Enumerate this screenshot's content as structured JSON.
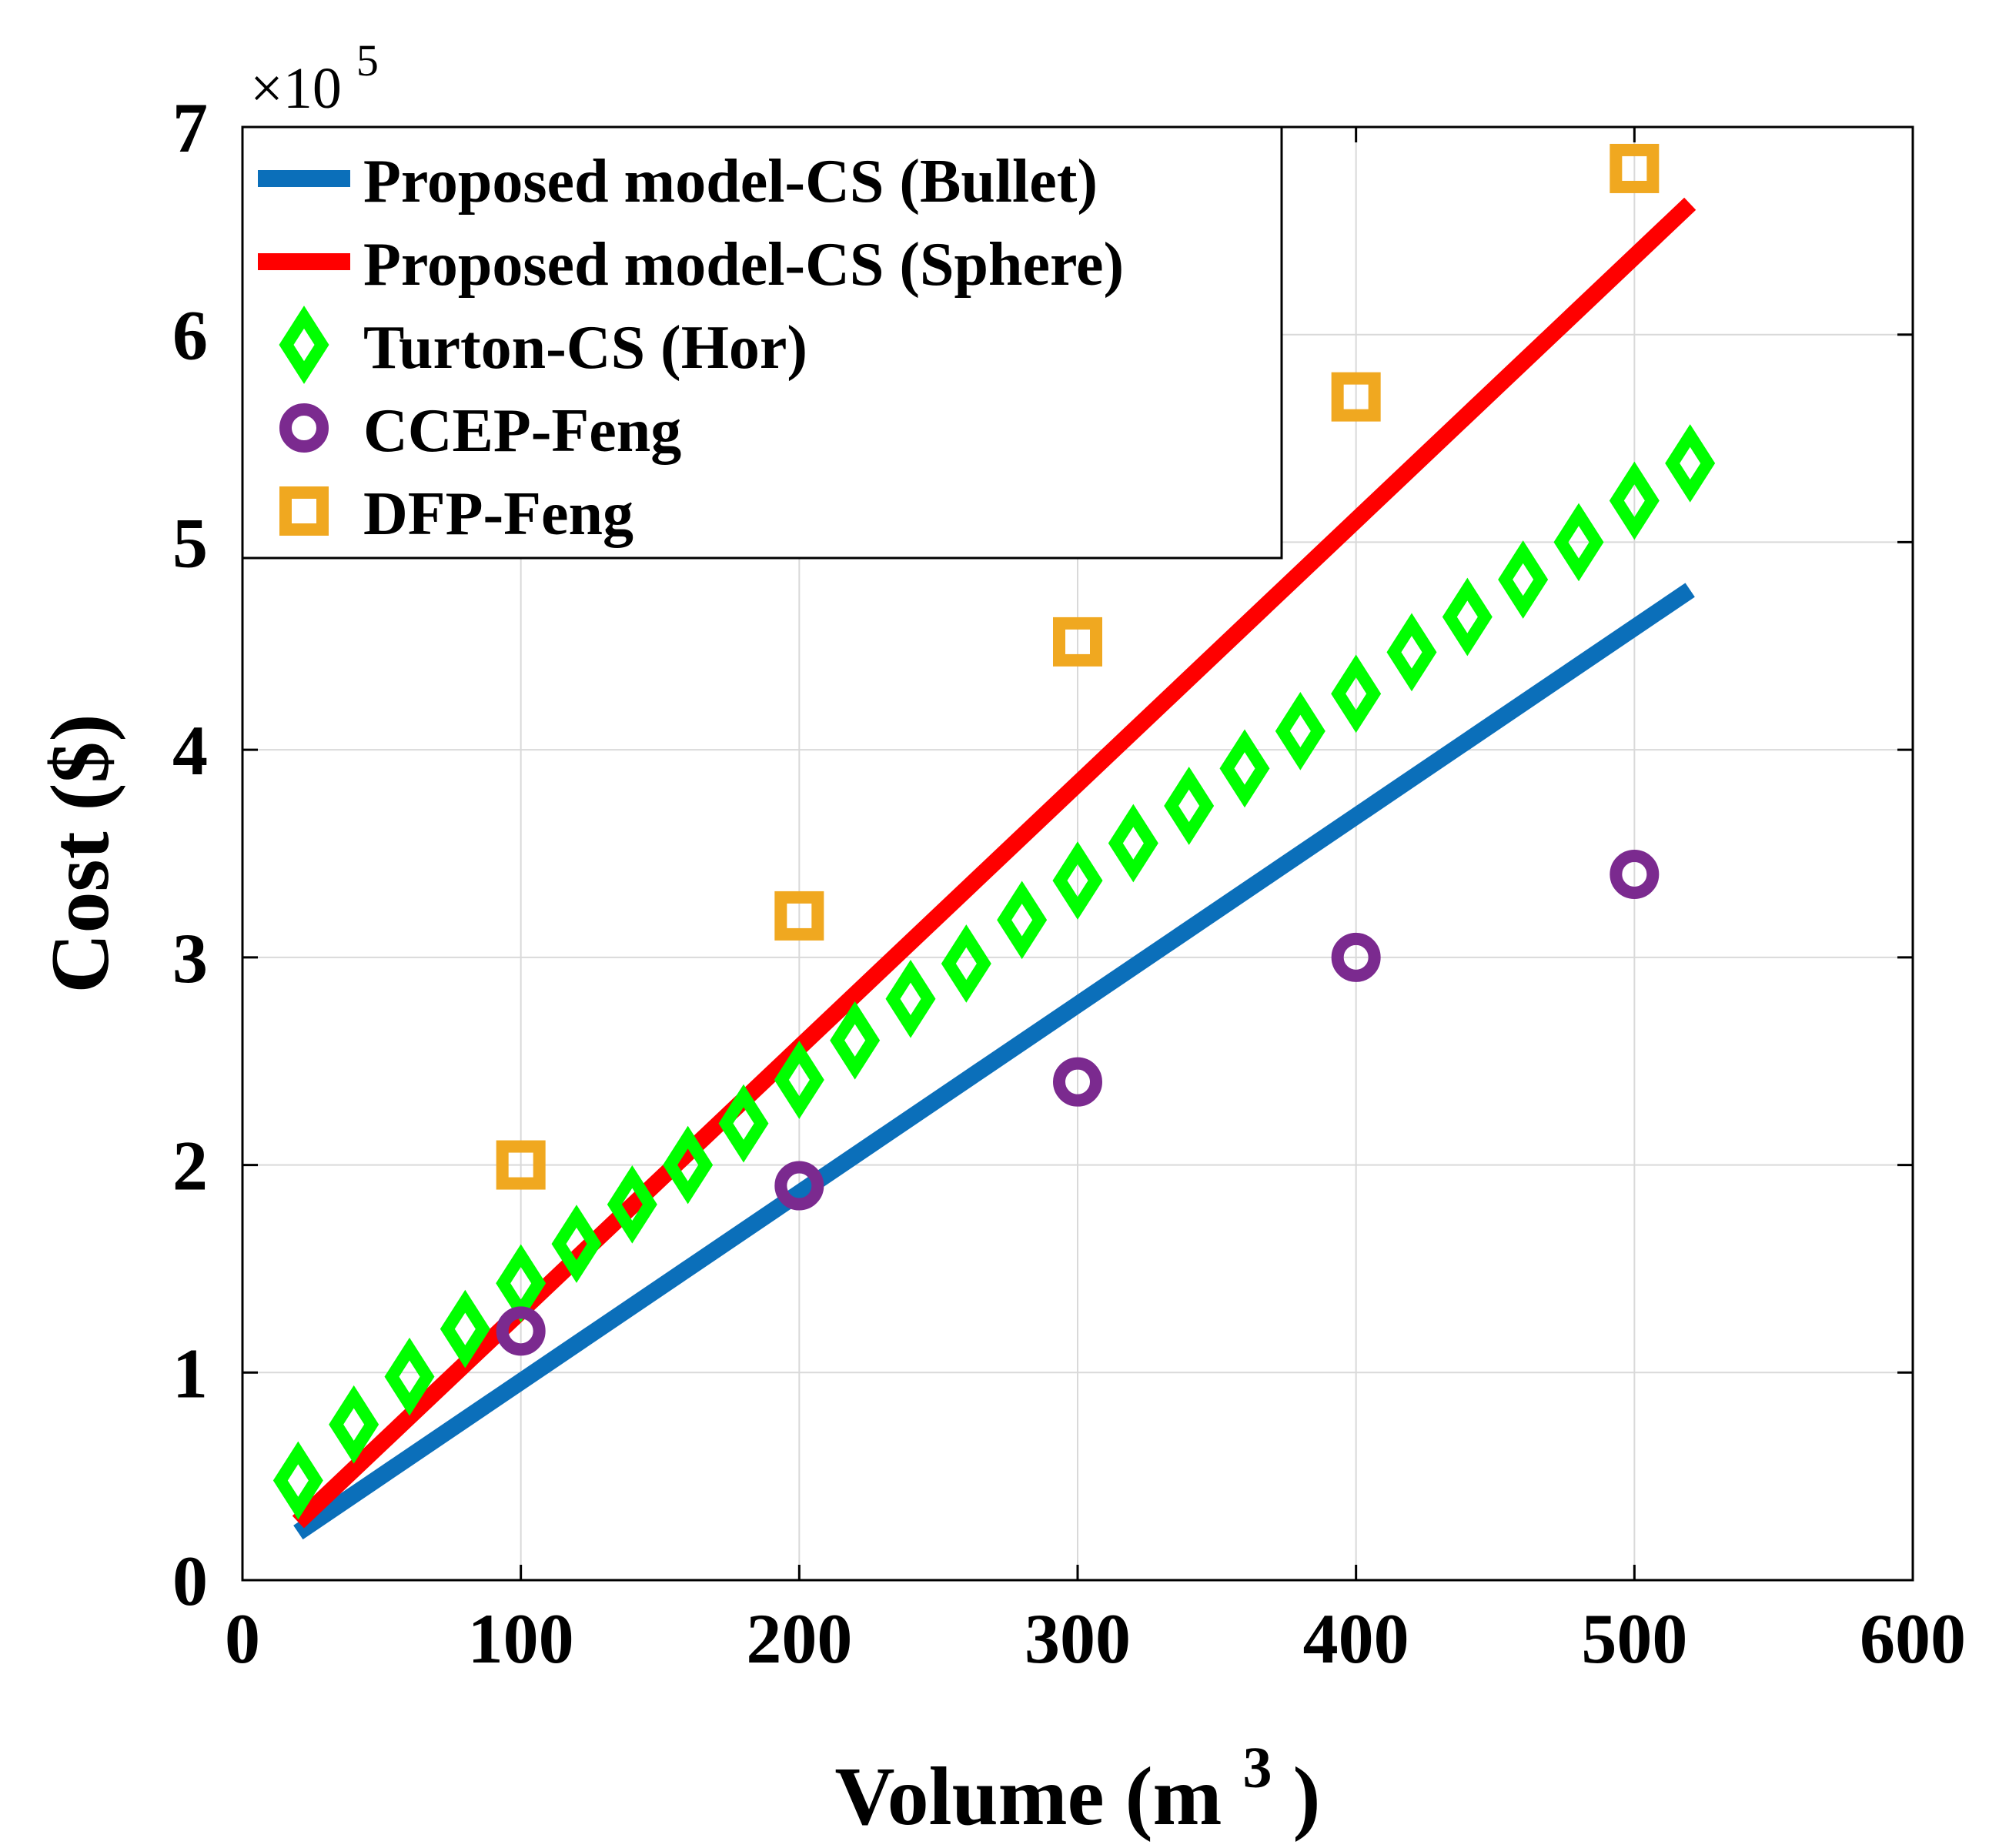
{
  "chart_data": {
    "type": "line",
    "title": "",
    "xlabel": "Volume (m",
    "xlabel_sup": "3",
    "xlabel_close": ")",
    "ylabel": "Cost ($)",
    "xlim": [
      0,
      600
    ],
    "ylim": [
      0,
      7
    ],
    "y_multiplier_base": "×10",
    "y_multiplier_exp": "5",
    "grid": true,
    "legend_position": "top-left",
    "x_ticks": [
      0,
      100,
      200,
      300,
      400,
      500,
      600
    ],
    "x_tick_labels": [
      "0",
      "100",
      "200",
      "300",
      "400",
      "500",
      "600"
    ],
    "y_ticks": [
      0,
      1,
      2,
      3,
      4,
      5,
      6,
      7
    ],
    "y_tick_labels": [
      "0",
      "1",
      "2",
      "3",
      "4",
      "5",
      "6",
      "7"
    ],
    "series": [
      {
        "name": "Proposed model-CS (Bullet)",
        "style": "line",
        "color": "#0b6fba",
        "x": [
          20,
          520
        ],
        "y": [
          0.23,
          4.77
        ]
      },
      {
        "name": "Proposed model-CS (Sphere)",
        "style": "line",
        "color": "#ff0000",
        "x": [
          20,
          520
        ],
        "y": [
          0.28,
          6.63
        ]
      },
      {
        "name": "Turton-CS (Hor)",
        "style": "diamond",
        "color": "#00ff00",
        "x": [
          20,
          40,
          60,
          80,
          100,
          120,
          140,
          160,
          180,
          200,
          220,
          240,
          260,
          280,
          300,
          320,
          340,
          360,
          380,
          400,
          420,
          440,
          460,
          480,
          500,
          520
        ],
        "y": [
          0.48,
          0.75,
          0.98,
          1.21,
          1.43,
          1.62,
          1.81,
          2.0,
          2.2,
          2.41,
          2.6,
          2.8,
          2.97,
          3.18,
          3.37,
          3.55,
          3.73,
          3.91,
          4.09,
          4.27,
          4.47,
          4.64,
          4.82,
          5.0,
          5.2,
          5.38
        ]
      },
      {
        "name": "CCEP-Feng",
        "style": "circle",
        "color": "#7b2a8f",
        "x": [
          100,
          200,
          300,
          400,
          500
        ],
        "y": [
          1.2,
          1.9,
          2.4,
          3.0,
          3.4
        ]
      },
      {
        "name": "DFP-Feng",
        "style": "square",
        "color": "#f0a820",
        "x": [
          100,
          200,
          300,
          400,
          500
        ],
        "y": [
          2.0,
          3.2,
          4.52,
          5.7,
          6.8
        ]
      }
    ]
  }
}
